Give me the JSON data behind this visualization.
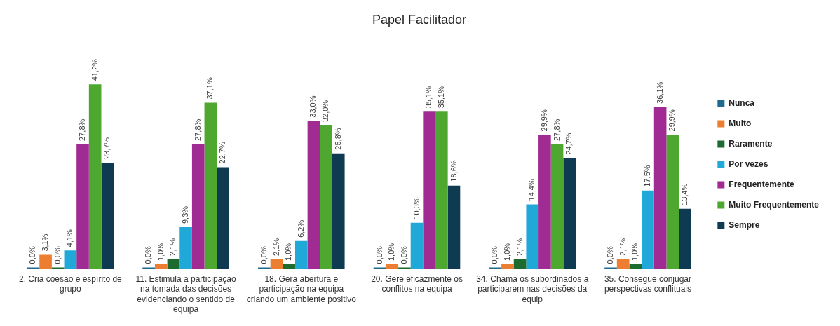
{
  "chart_data": {
    "type": "bar",
    "title": "Papel Facilitador",
    "categories": [
      "2. Cria coesão e espírito de grupo",
      "11. Estimula a participação na tomada das decisões evidenciando o sentido de equipa",
      "18. Gera abertura e participação na equipa criando um ambiente positivo",
      "20. Gere eficazmente os conflitos na equipa",
      "34. Chama os subordinados a participarem nas decisões da equip",
      "35. Consegue conjugar perspectivas conflituais"
    ],
    "series": [
      {
        "name": "Nunca",
        "color": "#1f6b8f",
        "values": [
          0.0,
          0.0,
          0.0,
          0.0,
          0.0,
          0.0
        ],
        "value_labels": [
          "0,0%",
          "0,0%",
          "0,0%",
          "0,0%",
          "0,0%",
          "0,0%"
        ]
      },
      {
        "name": "Muito",
        "color": "#ed7d31",
        "values": [
          3.1,
          1.0,
          2.1,
          1.0,
          1.0,
          2.1
        ],
        "value_labels": [
          "3,1%",
          "1,0%",
          "2,1%",
          "1,0%",
          "1,0%",
          "2,1%"
        ]
      },
      {
        "name": "Raramente",
        "color": "#1e6b30",
        "values": [
          0.0,
          2.1,
          1.0,
          0.0,
          2.1,
          1.0
        ],
        "value_labels": [
          "0,0%",
          "2,1%",
          "1,0%",
          "0,0%",
          "2,1%",
          "1,0%"
        ]
      },
      {
        "name": "Por vezes",
        "color": "#1fa8d8",
        "values": [
          4.1,
          9.3,
          6.2,
          10.3,
          14.4,
          17.5
        ],
        "value_labels": [
          "4,1%",
          "9,3%",
          "6,2%",
          "10,3%",
          "14,4%",
          "17,5%"
        ]
      },
      {
        "name": "Frequentemente",
        "color": "#a02b93",
        "values": [
          27.8,
          27.8,
          33.0,
          35.1,
          29.9,
          36.1
        ],
        "value_labels": [
          "27,8%",
          "27,8%",
          "33,0%",
          "35,1%",
          "29,9%",
          "36,1%"
        ]
      },
      {
        "name": "Muito Frequentemente",
        "color": "#4ea72e",
        "values": [
          41.2,
          37.1,
          32.0,
          35.1,
          27.8,
          29.9
        ],
        "value_labels": [
          "41,2%",
          "37,1%",
          "32,0%",
          "35,1%",
          "27,8%",
          "29,9%"
        ]
      },
      {
        "name": "Sempre",
        "color": "#0e3a52",
        "values": [
          23.7,
          22.7,
          25.8,
          18.6,
          24.7,
          13.4
        ],
        "value_labels": [
          "23,7%",
          "22,7%",
          "25,8%",
          "18,6%",
          "24,7%",
          "13,4%"
        ]
      }
    ],
    "legend": "right",
    "grid": false
  }
}
